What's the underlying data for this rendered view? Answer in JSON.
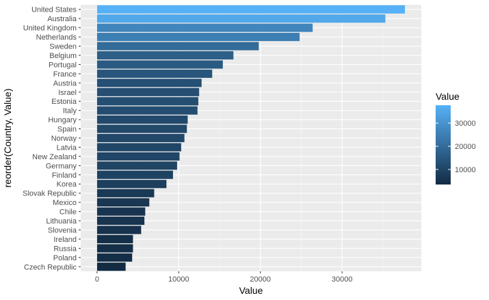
{
  "chart_data": {
    "type": "bar",
    "orientation": "horizontal",
    "xlabel": "Value",
    "ylabel": "reorder(Country, Value)",
    "xlim": [
      -2000,
      39700
    ],
    "x_ticks": [
      0,
      10000,
      20000,
      30000
    ],
    "x_tick_labels": [
      "0",
      "10000",
      "20000",
      "30000"
    ],
    "grid": true,
    "categories": [
      "United States",
      "Australia",
      "United Kingdom",
      "Netherlands",
      "Sweden",
      "Belgium",
      "Portugal",
      "France",
      "Austria",
      "Israel",
      "Estonia",
      "Italy",
      "Hungary",
      "Spain",
      "Norway",
      "Latvia",
      "New Zealand",
      "Germany",
      "Finland",
      "Korea",
      "Slovak Republic",
      "Mexico",
      "Chile",
      "Lithuania",
      "Slovenia",
      "Ireland",
      "Russia",
      "Poland",
      "Czech Republic"
    ],
    "values": [
      37700,
      35300,
      26400,
      24800,
      19800,
      16700,
      15400,
      14100,
      12800,
      12500,
      12400,
      12300,
      11100,
      11000,
      10700,
      10300,
      10100,
      9800,
      9300,
      8500,
      7000,
      6400,
      5900,
      5800,
      5400,
      4400,
      4400,
      4300,
      3500
    ],
    "legend": {
      "title": "Value",
      "position": "right",
      "type": "colorbar",
      "ticks": [
        10000,
        20000,
        30000
      ],
      "tick_labels": [
        "10000",
        "20000",
        "30000"
      ],
      "range": [
        3500,
        37700
      ],
      "low_color": "#132B43",
      "high_color": "#56B1F7"
    },
    "colors": {
      "panel_background": "#EBEBEB",
      "grid_major": "#FFFFFF",
      "grid_minor": "#F5F5F5"
    }
  }
}
